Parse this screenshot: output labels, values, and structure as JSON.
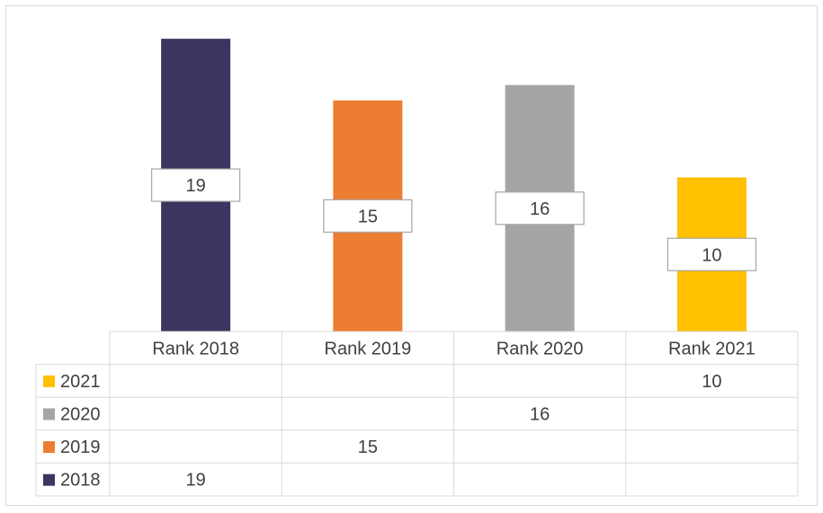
{
  "chart_data": {
    "type": "bar",
    "categories": [
      "Rank 2018",
      "Rank 2019",
      "Rank 2020",
      "Rank 2021"
    ],
    "series": [
      {
        "name": "2018",
        "color": "#3a3660",
        "values": [
          19,
          null,
          null,
          null
        ]
      },
      {
        "name": "2019",
        "color": "#ed7d31",
        "values": [
          null,
          15,
          null,
          null
        ]
      },
      {
        "name": "2020",
        "color": "#a5a5a5",
        "values": [
          null,
          null,
          16,
          null
        ]
      },
      {
        "name": "2021",
        "color": "#ffc000",
        "values": [
          null,
          null,
          null,
          10
        ]
      }
    ],
    "ylim": [
      0,
      20
    ],
    "grid": false,
    "legend": "data-table",
    "data_table": true
  }
}
